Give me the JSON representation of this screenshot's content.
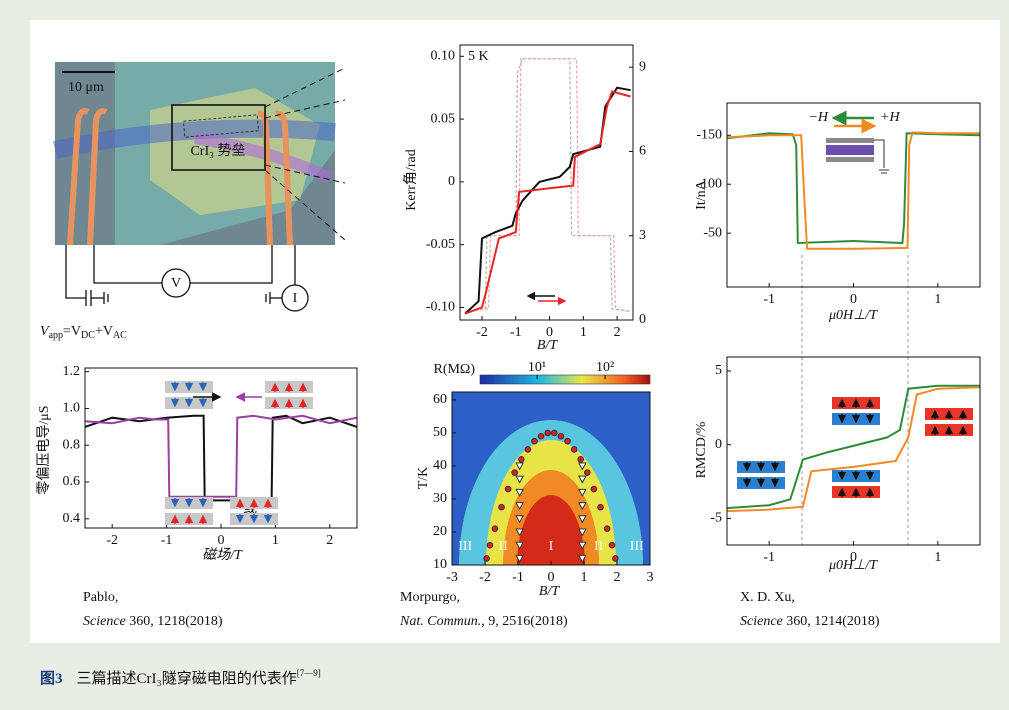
{
  "photo": {
    "scale_bar": "10 μm",
    "barrier_label": "CrI₃ 势垒",
    "voltmeter": "V",
    "source": "I",
    "formula": [
      "V",
      "app",
      "=V",
      "DC",
      "+V",
      "AC"
    ]
  },
  "chart_data": [
    {
      "type": "line",
      "xlabel": "磁场/T",
      "ylabel": "零偏压电导/μS",
      "annotation": "或",
      "xlim": [
        -2.5,
        2.5
      ],
      "ylim": [
        0.35,
        1.22
      ],
      "xticks": [
        -2,
        -1,
        0,
        1,
        2
      ],
      "yticks": [
        0.4,
        0.6,
        0.8,
        {
          "value": 1,
          "label": "1.0"
        },
        1.2
      ],
      "series": [
        {
          "color": "#111111",
          "x": [
            -2.5,
            -2,
            -1.5,
            -1,
            -0.5,
            -0.32,
            -0.3,
            0,
            0.5,
            0.93,
            0.95,
            1.2,
            1.5,
            2,
            2.5
          ],
          "y": [
            0.9,
            0.95,
            0.93,
            0.95,
            0.96,
            0.96,
            0.5,
            0.5,
            0.5,
            0.5,
            0.95,
            0.96,
            0.92,
            0.95,
            0.9
          ]
        },
        {
          "color": "#9b3fa0",
          "x": [
            -2.5,
            -2,
            -1.5,
            -1.2,
            -0.97,
            -0.95,
            -0.5,
            0,
            0.28,
            0.3,
            0.6,
            1,
            1.5,
            2,
            2.5
          ],
          "y": [
            0.93,
            0.92,
            0.95,
            0.94,
            0.94,
            0.52,
            0.52,
            0.52,
            0.52,
            0.95,
            0.96,
            0.94,
            0.96,
            0.92,
            0.95
          ]
        }
      ]
    },
    {
      "type": "line",
      "xlabel": "B/T",
      "ylabel": "Kerr角/rad",
      "annotation": "5 K",
      "xlim": [
        -2.65,
        2.47
      ],
      "ylim": [
        -0.11,
        0.109
      ],
      "y2lim": [
        0,
        9.79
      ],
      "xticks": [
        -2,
        -1,
        0,
        1,
        2
      ],
      "yticks": [
        {
          "value": -0.1,
          "label": "-0.10"
        },
        -0.05,
        0,
        0.05,
        {
          "value": 0.1,
          "label": "0.10"
        }
      ],
      "y2ticks": [
        0,
        3,
        6,
        9
      ],
      "series": [
        {
          "color": "#b0b0b0",
          "dash": true,
          "axis": "y2",
          "x": [
            -2.5,
            -1.9,
            -1.85,
            -1,
            -0.95,
            -0.8,
            0.6,
            0.65,
            1.8,
            1.85,
            2.4
          ],
          "y": [
            0.3,
            0.4,
            3,
            3,
            8.8,
            9.3,
            9.3,
            3,
            3,
            0.4,
            0.3
          ]
        },
        {
          "color": "#f2a0a0",
          "dash": true,
          "axis": "y2",
          "x": [
            -2.5,
            -1.8,
            -1.75,
            -0.9,
            -0.85,
            0.8,
            0.85,
            1.9,
            1.95,
            2.4
          ],
          "y": [
            0.3,
            0.4,
            3,
            3,
            9.3,
            9.3,
            3,
            3,
            0.4,
            0.3
          ]
        },
        {
          "color": "#111111",
          "x": [
            -2.5,
            -2.1,
            -2,
            -1.6,
            -1.1,
            -1,
            -0.8,
            -0.3,
            0.3,
            0.6,
            0.7,
            1.5,
            1.65,
            2,
            2.4
          ],
          "y": [
            -0.105,
            -0.095,
            -0.045,
            -0.04,
            -0.035,
            -0.025,
            -0.015,
            0,
            0.004,
            0.012,
            0.022,
            0.028,
            0.06,
            0.075,
            0.073
          ]
        },
        {
          "color": "#e8262a",
          "x": [
            -2.5,
            -2,
            -1.9,
            -1.5,
            -1,
            -0.9,
            0,
            0.7,
            0.75,
            1.5,
            1.7,
            1.85,
            2.4
          ],
          "y": [
            -0.105,
            -0.1,
            -0.09,
            -0.045,
            -0.04,
            -0.008,
            -0.005,
            -0.003,
            0.02,
            0.03,
            0.06,
            0.072,
            0.068
          ]
        }
      ]
    },
    {
      "type": "scatter",
      "xlabel": "B/T",
      "ylabel": "T/K",
      "region_labels": [
        "III",
        "II",
        "I",
        "II",
        "III"
      ],
      "colorbar": {
        "label": "R(MΩ)",
        "lim": [
          1.45,
          458
        ],
        "log": true,
        "ticks": [
          {
            "value": 10,
            "label": "10¹"
          },
          {
            "value": 100,
            "label": "10²"
          }
        ]
      },
      "xlim": [
        -3,
        3
      ],
      "ylim": [
        10,
        62.4
      ],
      "xticks": [
        -3,
        -2,
        -1,
        0,
        1,
        2,
        3
      ],
      "yticks": [
        10,
        20,
        30,
        40,
        50,
        60
      ],
      "series": [
        {
          "marker": "circle",
          "color": "#e02020",
          "x": [
            -1.95,
            -1.85,
            -1.7,
            -1.5,
            -1.3,
            -1.1,
            -0.9,
            -0.7,
            -0.5,
            -0.3,
            -0.1,
            0.1,
            0.3,
            0.5,
            0.7,
            0.9,
            1.1,
            1.3,
            1.5,
            1.7,
            1.85,
            1.95
          ],
          "y": [
            12,
            16,
            21,
            27.5,
            33,
            38,
            42,
            45,
            47.5,
            49,
            50,
            50,
            49,
            47.5,
            45,
            42,
            38,
            33,
            27.5,
            21,
            16,
            12
          ]
        },
        {
          "marker": "triangle",
          "color": "#ffffff",
          "x": [
            -0.95,
            -0.95,
            -0.95,
            -0.95,
            -0.95,
            -0.95,
            -0.95,
            -0.95,
            0.95,
            0.95,
            0.95,
            0.95,
            0.95,
            0.95,
            0.95,
            0.95
          ],
          "y": [
            12,
            16,
            20,
            24,
            28,
            32,
            36,
            40,
            12,
            16,
            20,
            24,
            28,
            32,
            36,
            40
          ]
        }
      ]
    },
    {
      "type": "line",
      "xlabel": "μ0H⊥/T",
      "ylabel": "It/nA",
      "xlim": [
        -1.5,
        1.5
      ],
      "ylim": [
        5,
        -183
      ],
      "xticks": [
        -1,
        0,
        1
      ],
      "yticks": [
        -150,
        -100,
        -50
      ],
      "series": [
        {
          "name": "−H",
          "color": "#2e8b3a",
          "x": [
            -1.5,
            -1,
            -0.72,
            -0.68,
            -0.66,
            0,
            0.58,
            0.6,
            0.63,
            1,
            1.5
          ],
          "y": [
            -147,
            -152,
            -151,
            -140,
            -40,
            -42,
            -40,
            -60,
            -152,
            -151,
            -150
          ]
        },
        {
          "name": "+H",
          "color": "#f08a24",
          "x": [
            -1.5,
            -1,
            -0.62,
            -0.58,
            -0.55,
            0,
            0.64,
            0.66,
            0.7,
            1,
            1.5
          ],
          "y": [
            -148,
            -150,
            -150,
            -80,
            -34,
            -34,
            -35,
            -140,
            -153,
            -152,
            -152
          ]
        }
      ]
    },
    {
      "type": "line",
      "xlabel": "μ0H⊥/T",
      "ylabel": "RMCD/%",
      "xlim": [
        -1.5,
        1.5
      ],
      "ylim": [
        -6.8,
        5.95
      ],
      "xticks": [
        -1,
        0,
        1
      ],
      "yticks": [
        -5,
        0,
        5
      ],
      "series": [
        {
          "color": "#2e8b3a",
          "x": [
            -1.5,
            -1,
            -0.75,
            -0.6,
            -0.3,
            0.4,
            0.55,
            0.65,
            1,
            1.5
          ],
          "y": [
            -4.3,
            -4.1,
            -3.7,
            -1,
            -0.5,
            0.5,
            1,
            3.8,
            4,
            4
          ]
        },
        {
          "color": "#f08a24",
          "x": [
            -1.5,
            -1,
            -0.6,
            -0.5,
            0,
            0.5,
            0.65,
            0.75,
            1,
            1.5
          ],
          "y": [
            -4.5,
            -4.4,
            -4.2,
            -1.8,
            -1.5,
            -1.1,
            0.5,
            3.4,
            3.8,
            3.9
          ]
        }
      ]
    }
  ],
  "credits": [
    {
      "author": "Pablo,",
      "journal": "Science",
      "ref": " 360, 1218(2018)"
    },
    {
      "author": "Morpurgo,",
      "journal": "Nat. Commun.",
      "ref": ", 9, 2516(2018)"
    },
    {
      "author": "X. D. Xu,",
      "journal": "Science",
      "ref": " 360, 1214(2018)"
    }
  ],
  "caption": {
    "label": "图3",
    "text": "三篇描述CrI₃隧穿磁电阻的代表作",
    "refs": "[7—9]"
  }
}
